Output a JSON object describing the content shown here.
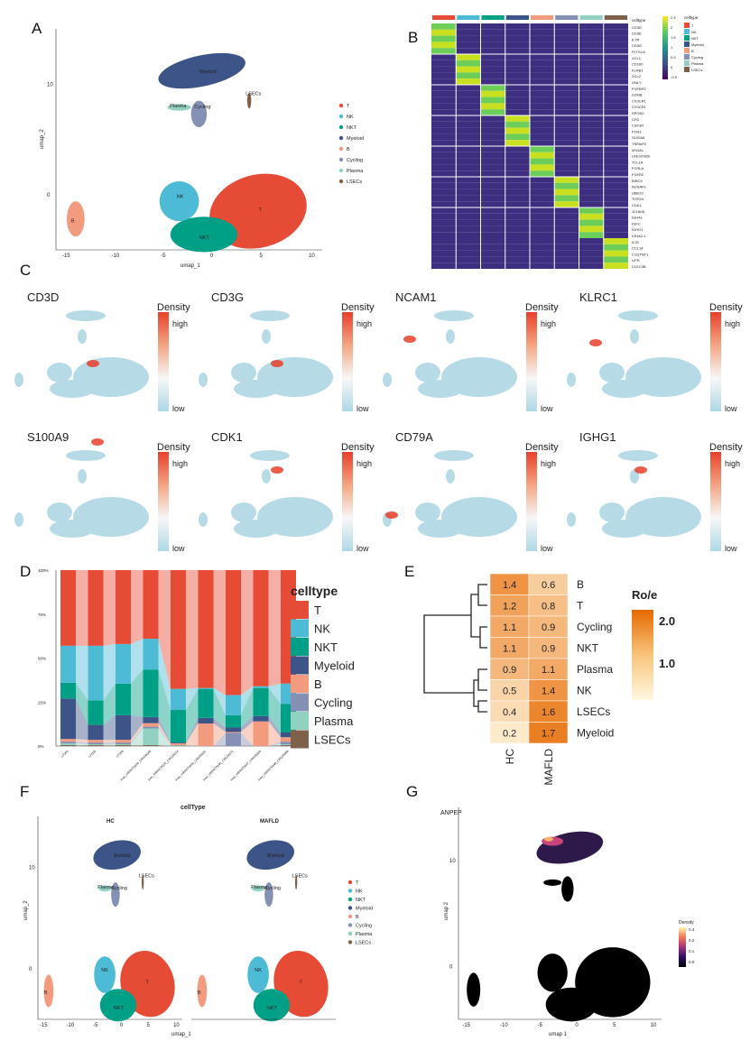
{
  "panel_labels": [
    "A",
    "B",
    "C",
    "D",
    "E",
    "F",
    "G"
  ],
  "colors": {
    "T": "#e64b35",
    "NK": "#4dbbd5",
    "NKT": "#00a087",
    "Myeloid": "#3c5488",
    "B": "#f39b7f",
    "Cycling": "#8491b4",
    "Plasma": "#91d1c2",
    "LSECs": "#7e6148"
  },
  "celltypes": [
    "T",
    "NK",
    "NKT",
    "Myeloid",
    "B",
    "Cycling",
    "Plasma",
    "LSECs"
  ],
  "chart_data": [
    {
      "panel": "A",
      "type": "scatter",
      "xlabel": "umap_1",
      "ylabel": "umap_2",
      "xticks": [
        -15,
        -10,
        -5,
        0,
        5,
        10
      ],
      "yticks": [
        0,
        10
      ],
      "cluster_labels": [
        "T",
        "NK",
        "NKT",
        "Myeloid",
        "B",
        "Cycling",
        "Plasma",
        "LSECs"
      ],
      "legend": [
        "T",
        "NK",
        "NKT",
        "Myeloid",
        "B",
        "Cycling",
        "Plasma",
        "LSECs"
      ],
      "legend_position": "right"
    },
    {
      "panel": "B",
      "type": "heatmap",
      "legend_title": "celltype",
      "legend_title2": "celltype",
      "scale_ticks": [
        "2.5",
        "2",
        "1.5",
        "1",
        "0.5",
        "0",
        "-0.5"
      ],
      "genes": [
        "CD3D",
        "CD3E",
        "IL7R",
        "CD3G",
        "PLTSLG",
        "XCL1",
        "CD160",
        "KLRB1",
        "XCL2",
        "GNLY",
        "FGFBP2",
        "GZMB",
        "CX3CR1",
        "CX3CR1",
        "SPON2",
        "CFD",
        "CSF3R",
        "FCN1",
        "S100A8",
        "TNFAIP2",
        "MS4A1",
        "LINC00926",
        "TCL1A",
        "FCRLA",
        "FCER2",
        "BIRC5",
        "NUSAP1",
        "UBE2C",
        "TOP2A",
        "CDK1",
        "JCHAIN",
        "IGHA1",
        "IGKC",
        "IGHG1",
        "IGHA2-1",
        "IL33",
        "CCL14",
        "C1QTNF1",
        "LIFR",
        "CLEC3B"
      ]
    },
    {
      "panel": "C",
      "type": "density",
      "legend_title": "Density",
      "high": "high",
      "low": "low",
      "genes": [
        "CD3D",
        "CD3G",
        "NCAM1",
        "KLRC1",
        "S100A9",
        "CDK1",
        "CD79A",
        "IGHG1"
      ]
    },
    {
      "panel": "D",
      "type": "bar",
      "stacked": true,
      "legend_title": "celltype",
      "legend_position": "right",
      "yticks": [
        "0%",
        "25%",
        "50%",
        "75%",
        "100%"
      ],
      "ylim": [
        0,
        100
      ],
      "categories": [
        "LF004",
        "LF005",
        "LF008",
        "liver_HRR470026_CR026348",
        "liver_HRR470026_CR026314",
        "liver_HRR470040_CR026331",
        "liver_HRR470040_CR026372",
        "liver_HRR470047_CR026304",
        "liver_HRR470048_CR026468"
      ],
      "series": [
        {
          "name": "LSECs",
          "values": [
            0.5,
            0.5,
            0.5,
            0.5,
            0,
            0,
            0,
            0,
            0.5
          ]
        },
        {
          "name": "Plasma",
          "values": [
            1,
            0.5,
            0.5,
            9.5,
            0.2,
            0,
            0,
            0,
            0.5
          ]
        },
        {
          "name": "Cycling",
          "values": [
            1,
            1,
            1,
            1,
            0.3,
            0,
            7.5,
            0,
            1.5
          ]
        },
        {
          "name": "B",
          "values": [
            1.5,
            1.5,
            1.5,
            2,
            1,
            12.8,
            0.5,
            14,
            2.5
          ]
        },
        {
          "name": "Myeloid",
          "values": [
            23,
            8.5,
            14,
            3.5,
            0.5,
            3.2,
            2.5,
            3,
            2.7
          ]
        },
        {
          "name": "NKT",
          "values": [
            9,
            14,
            18,
            27,
            18.5,
            16.5,
            7,
            16,
            16.3
          ]
        },
        {
          "name": "NK",
          "values": [
            21,
            31,
            22.5,
            17.5,
            12,
            0.5,
            11.5,
            1,
            11.5
          ]
        },
        {
          "name": "T",
          "values": [
            43,
            43,
            42,
            39,
            67.5,
            67,
            71,
            66,
            64.5
          ]
        }
      ]
    },
    {
      "panel": "E",
      "type": "heatmap",
      "legend_title": "Ro/e",
      "scale_ticks": [
        "2.0",
        "1.0"
      ],
      "columns": [
        "HC",
        "MAFLD"
      ],
      "rows": [
        "B",
        "T",
        "Cycling",
        "NKT",
        "Plasma",
        "NK",
        "LSECs",
        "Myeloid"
      ],
      "values": [
        [
          1.4,
          0.6
        ],
        [
          1.2,
          0.8
        ],
        [
          1.1,
          0.9
        ],
        [
          1.1,
          0.9
        ],
        [
          0.9,
          1.1
        ],
        [
          0.5,
          1.4
        ],
        [
          0.4,
          1.6
        ],
        [
          0.2,
          1.7
        ]
      ]
    },
    {
      "panel": "F",
      "type": "scatter",
      "title": "cellType",
      "facets": [
        "HC",
        "MAFLD"
      ],
      "xlabel": "umap_1",
      "ylabel": "umap_2",
      "xticks": [
        -15,
        -10,
        -5,
        0,
        5,
        10
      ],
      "yticks": [
        0,
        10
      ],
      "cluster_labels": [
        "T",
        "NK",
        "NKT",
        "Myeloid",
        "B",
        "Cycling",
        "Plasma",
        "LSECs"
      ],
      "legend": [
        "T",
        "NK",
        "NKT",
        "Myeloid",
        "B",
        "Cycling",
        "Plasma",
        "LSECs"
      ],
      "legend_position": "right"
    },
    {
      "panel": "G",
      "type": "density",
      "title": "ANPEP",
      "xlabel": "umap 1",
      "ylabel": "umap 2",
      "xticks": [
        -15,
        -10,
        -5,
        0,
        5,
        10
      ],
      "yticks": [
        0,
        10
      ],
      "legend_title": "Density",
      "scale_ticks": [
        "0.3",
        "0.2",
        "0.1",
        "0.0"
      ]
    }
  ]
}
